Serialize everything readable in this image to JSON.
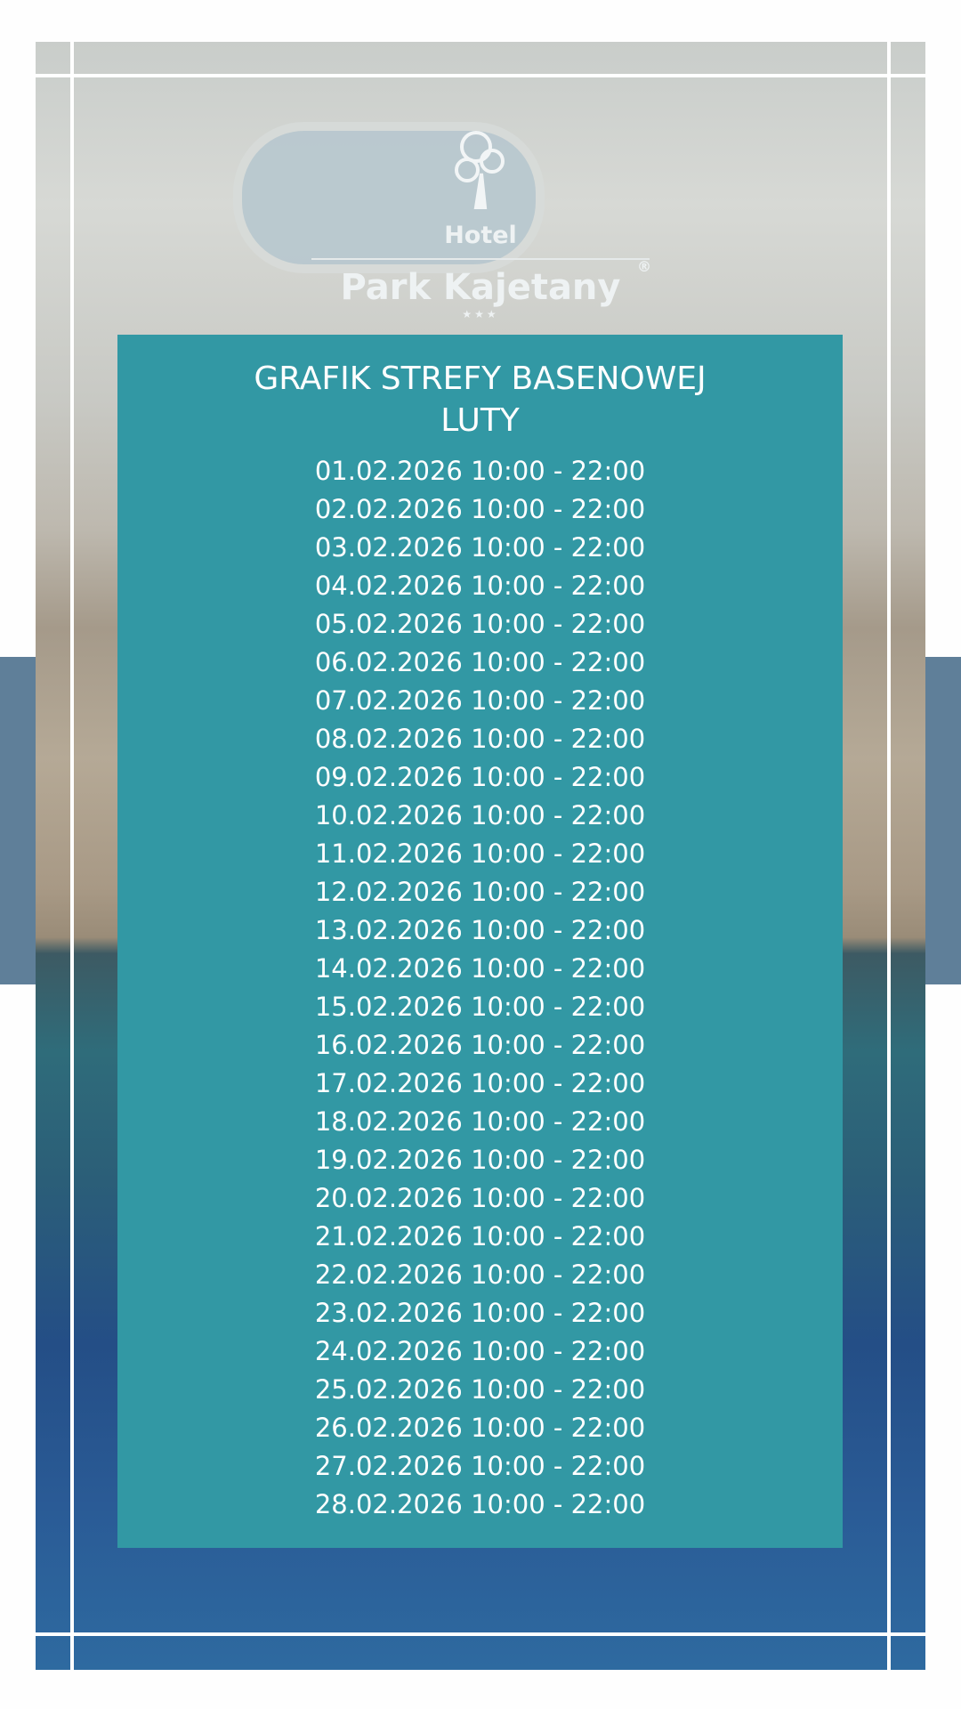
{
  "logo": {
    "hotel": "Hotel",
    "name": "Park Kajetany",
    "registered": "®",
    "stars": "★★★"
  },
  "panel": {
    "title_line1": "GRAFIK STREFY BASENOWEJ",
    "title_line2": "LUTY",
    "rows": [
      "01.02.2026 10:00 - 22:00",
      "02.02.2026 10:00 - 22:00",
      "03.02.2026 10:00 - 22:00",
      "04.02.2026 10:00 - 22:00",
      "05.02.2026 10:00 - 22:00",
      "06.02.2026 10:00 - 22:00",
      "07.02.2026 10:00 - 22:00",
      "08.02.2026 10:00 - 22:00",
      "09.02.2026 10:00 - 22:00",
      "10.02.2026 10:00 - 22:00",
      "11.02.2026 10:00 - 22:00",
      "12.02.2026 10:00 - 22:00",
      "13.02.2026 10:00 - 22:00",
      "14.02.2026 10:00 - 22:00",
      "15.02.2026 10:00 - 22:00",
      "16.02.2026 10:00 - 22:00",
      "17.02.2026 10:00 - 22:00",
      "18.02.2026 10:00 - 22:00",
      "19.02.2026 10:00 - 22:00",
      "20.02.2026 10:00 - 22:00",
      "21.02.2026 10:00 - 22:00",
      "22.02.2026 10:00 - 22:00",
      "23.02.2026 10:00 - 22:00",
      "24.02.2026 10:00 - 22:00",
      "25.02.2026 10:00 - 22:00",
      "26.02.2026 10:00 - 22:00",
      "27.02.2026 10:00 - 22:00",
      "28.02.2026 10:00 - 22:00"
    ]
  },
  "colors": {
    "panel": "#3298a4",
    "sidebar": "#5f7f99"
  }
}
